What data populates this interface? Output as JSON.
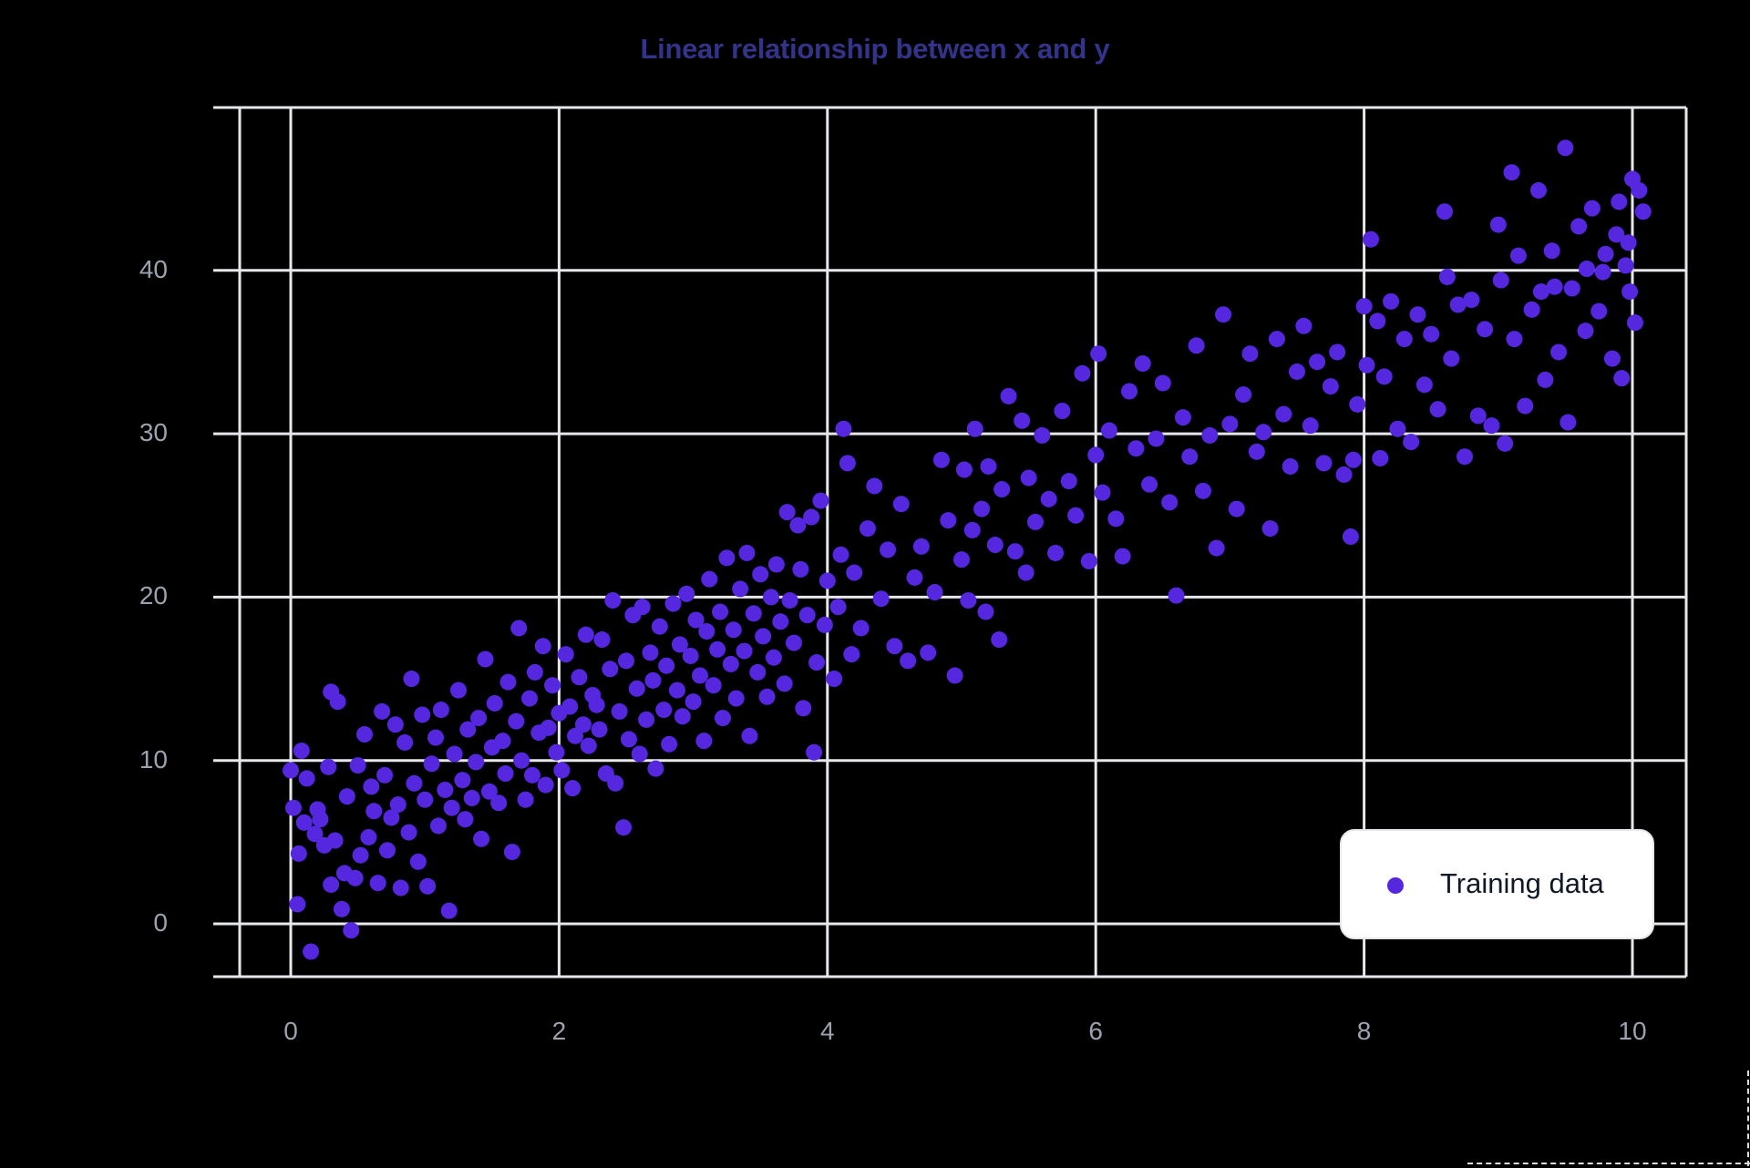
{
  "chart_data": {
    "type": "scatter",
    "title": "Linear relationship between x and y",
    "xlabel": "",
    "ylabel": "",
    "xlim": [
      -0.45,
      10.4
    ],
    "ylim": [
      -3.2,
      50
    ],
    "xticks": [
      0,
      2,
      4,
      6,
      8,
      10
    ],
    "yticks": [
      0,
      10,
      20,
      30,
      40
    ],
    "grid": true,
    "legend_position": "lower right",
    "colors": {
      "point": "#5528e0",
      "grid": "#e5e7eb",
      "title": "#33338a",
      "tick": "#9ca3af",
      "background": "#000000"
    },
    "series": [
      {
        "name": "Training data",
        "approx_count": 1000,
        "trend": {
          "slope": 3.4,
          "intercept": 6.8,
          "noise_sd": 3.0
        },
        "points": [
          [
            0.0,
            9.4
          ],
          [
            0.02,
            7.1
          ],
          [
            0.05,
            1.2
          ],
          [
            0.06,
            4.3
          ],
          [
            0.08,
            10.6
          ],
          [
            0.1,
            6.2
          ],
          [
            0.12,
            8.9
          ],
          [
            0.15,
            -1.7
          ],
          [
            0.18,
            5.5
          ],
          [
            0.2,
            7.0
          ],
          [
            0.22,
            6.4
          ],
          [
            0.25,
            4.8
          ],
          [
            0.28,
            9.6
          ],
          [
            0.3,
            2.4
          ],
          [
            0.3,
            14.2
          ],
          [
            0.33,
            5.1
          ],
          [
            0.35,
            13.6
          ],
          [
            0.38,
            0.9
          ],
          [
            0.4,
            3.1
          ],
          [
            0.42,
            7.8
          ],
          [
            0.45,
            -0.4
          ],
          [
            0.48,
            2.8
          ],
          [
            0.5,
            9.7
          ],
          [
            0.52,
            4.2
          ],
          [
            0.55,
            11.6
          ],
          [
            0.58,
            5.3
          ],
          [
            0.6,
            8.4
          ],
          [
            0.62,
            6.9
          ],
          [
            0.65,
            2.5
          ],
          [
            0.68,
            13.0
          ],
          [
            0.7,
            9.1
          ],
          [
            0.72,
            4.5
          ],
          [
            0.75,
            6.5
          ],
          [
            0.78,
            12.2
          ],
          [
            0.8,
            7.3
          ],
          [
            0.82,
            2.2
          ],
          [
            0.85,
            11.1
          ],
          [
            0.88,
            5.6
          ],
          [
            0.9,
            15.0
          ],
          [
            0.92,
            8.6
          ],
          [
            0.95,
            3.8
          ],
          [
            0.98,
            12.8
          ],
          [
            1.0,
            7.6
          ],
          [
            1.02,
            2.3
          ],
          [
            1.05,
            9.8
          ],
          [
            1.08,
            11.4
          ],
          [
            1.1,
            6.0
          ],
          [
            1.12,
            13.1
          ],
          [
            1.15,
            8.2
          ],
          [
            1.18,
            0.8
          ],
          [
            1.2,
            7.1
          ],
          [
            1.22,
            10.4
          ],
          [
            1.25,
            14.3
          ],
          [
            1.28,
            8.8
          ],
          [
            1.3,
            6.4
          ],
          [
            1.32,
            11.9
          ],
          [
            1.35,
            7.7
          ],
          [
            1.38,
            9.9
          ],
          [
            1.4,
            12.6
          ],
          [
            1.42,
            5.2
          ],
          [
            1.45,
            16.2
          ],
          [
            1.48,
            8.1
          ],
          [
            1.5,
            10.8
          ],
          [
            1.52,
            13.5
          ],
          [
            1.55,
            7.4
          ],
          [
            1.58,
            11.2
          ],
          [
            1.6,
            9.2
          ],
          [
            1.62,
            14.8
          ],
          [
            1.65,
            4.4
          ],
          [
            1.68,
            12.4
          ],
          [
            1.7,
            18.1
          ],
          [
            1.72,
            10.0
          ],
          [
            1.75,
            7.6
          ],
          [
            1.78,
            13.8
          ],
          [
            1.8,
            9.1
          ],
          [
            1.82,
            15.4
          ],
          [
            1.85,
            11.7
          ],
          [
            1.88,
            17.0
          ],
          [
            1.9,
            8.5
          ],
          [
            1.92,
            12.0
          ],
          [
            1.95,
            14.6
          ],
          [
            1.98,
            10.5
          ],
          [
            2.0,
            12.9
          ],
          [
            2.02,
            9.4
          ],
          [
            2.05,
            16.5
          ],
          [
            2.08,
            13.3
          ],
          [
            2.1,
            8.3
          ],
          [
            2.12,
            11.5
          ],
          [
            2.15,
            15.1
          ],
          [
            2.18,
            12.2
          ],
          [
            2.2,
            17.7
          ],
          [
            2.22,
            10.9
          ],
          [
            2.25,
            14.0
          ],
          [
            2.28,
            13.4
          ],
          [
            2.3,
            11.9
          ],
          [
            2.32,
            17.4
          ],
          [
            2.35,
            9.2
          ],
          [
            2.38,
            15.6
          ],
          [
            2.4,
            19.8
          ],
          [
            2.42,
            8.6
          ],
          [
            2.45,
            13.0
          ],
          [
            2.48,
            5.9
          ],
          [
            2.5,
            16.1
          ],
          [
            2.52,
            11.3
          ],
          [
            2.55,
            18.9
          ],
          [
            2.58,
            14.4
          ],
          [
            2.6,
            10.4
          ],
          [
            2.62,
            19.4
          ],
          [
            2.65,
            12.5
          ],
          [
            2.68,
            16.6
          ],
          [
            2.7,
            14.9
          ],
          [
            2.72,
            9.5
          ],
          [
            2.75,
            18.2
          ],
          [
            2.78,
            13.1
          ],
          [
            2.8,
            15.8
          ],
          [
            2.82,
            11.0
          ],
          [
            2.85,
            19.6
          ],
          [
            2.88,
            14.3
          ],
          [
            2.9,
            17.1
          ],
          [
            2.92,
            12.7
          ],
          [
            2.95,
            20.2
          ],
          [
            2.98,
            16.4
          ],
          [
            3.0,
            13.6
          ],
          [
            3.02,
            18.6
          ],
          [
            3.05,
            15.2
          ],
          [
            3.08,
            11.2
          ],
          [
            3.1,
            17.9
          ],
          [
            3.12,
            21.1
          ],
          [
            3.15,
            14.6
          ],
          [
            3.18,
            16.8
          ],
          [
            3.2,
            19.1
          ],
          [
            3.22,
            12.6
          ],
          [
            3.25,
            22.4
          ],
          [
            3.28,
            15.9
          ],
          [
            3.3,
            18.0
          ],
          [
            3.32,
            13.8
          ],
          [
            3.35,
            20.5
          ],
          [
            3.38,
            16.7
          ],
          [
            3.4,
            22.7
          ],
          [
            3.42,
            11.5
          ],
          [
            3.45,
            19.0
          ],
          [
            3.48,
            15.4
          ],
          [
            3.5,
            21.4
          ],
          [
            3.52,
            17.6
          ],
          [
            3.55,
            13.9
          ],
          [
            3.58,
            20.0
          ],
          [
            3.6,
            16.3
          ],
          [
            3.62,
            22.0
          ],
          [
            3.65,
            18.5
          ],
          [
            3.68,
            14.7
          ],
          [
            3.7,
            25.2
          ],
          [
            3.72,
            19.8
          ],
          [
            3.75,
            17.2
          ],
          [
            3.78,
            24.4
          ],
          [
            3.8,
            21.7
          ],
          [
            3.82,
            13.2
          ],
          [
            3.85,
            18.9
          ],
          [
            3.88,
            24.9
          ],
          [
            3.9,
            10.5
          ],
          [
            3.92,
            16.0
          ],
          [
            3.95,
            25.9
          ],
          [
            3.98,
            18.3
          ],
          [
            4.0,
            21.0
          ],
          [
            4.05,
            15.0
          ],
          [
            4.08,
            19.4
          ],
          [
            4.1,
            22.6
          ],
          [
            4.12,
            30.3
          ],
          [
            4.15,
            28.2
          ],
          [
            4.18,
            16.5
          ],
          [
            4.2,
            21.5
          ],
          [
            4.25,
            18.1
          ],
          [
            4.3,
            24.2
          ],
          [
            4.35,
            26.8
          ],
          [
            4.4,
            19.9
          ],
          [
            4.45,
            22.9
          ],
          [
            4.5,
            17.0
          ],
          [
            4.55,
            25.7
          ],
          [
            4.6,
            16.1
          ],
          [
            4.65,
            21.2
          ],
          [
            4.7,
            23.1
          ],
          [
            4.75,
            16.6
          ],
          [
            4.8,
            20.3
          ],
          [
            4.85,
            28.4
          ],
          [
            4.9,
            24.7
          ],
          [
            4.95,
            15.2
          ],
          [
            5.0,
            22.3
          ],
          [
            5.02,
            27.8
          ],
          [
            5.05,
            19.8
          ],
          [
            5.08,
            24.1
          ],
          [
            5.1,
            30.3
          ],
          [
            5.15,
            25.4
          ],
          [
            5.18,
            19.1
          ],
          [
            5.2,
            28.0
          ],
          [
            5.25,
            23.2
          ],
          [
            5.28,
            17.4
          ],
          [
            5.3,
            26.6
          ],
          [
            5.35,
            32.3
          ],
          [
            5.4,
            22.8
          ],
          [
            5.45,
            30.8
          ],
          [
            5.48,
            21.5
          ],
          [
            5.5,
            27.3
          ],
          [
            5.55,
            24.6
          ],
          [
            5.6,
            29.9
          ],
          [
            5.65,
            26.0
          ],
          [
            5.7,
            22.7
          ],
          [
            5.75,
            31.4
          ],
          [
            5.8,
            27.1
          ],
          [
            5.85,
            25.0
          ],
          [
            5.9,
            33.7
          ],
          [
            5.95,
            22.2
          ],
          [
            6.0,
            28.7
          ],
          [
            6.02,
            34.9
          ],
          [
            6.05,
            26.4
          ],
          [
            6.1,
            30.2
          ],
          [
            6.15,
            24.8
          ],
          [
            6.2,
            22.5
          ],
          [
            6.25,
            32.6
          ],
          [
            6.3,
            29.1
          ],
          [
            6.35,
            34.3
          ],
          [
            6.4,
            26.9
          ],
          [
            6.45,
            29.7
          ],
          [
            6.5,
            33.1
          ],
          [
            6.55,
            25.8
          ],
          [
            6.6,
            20.1
          ],
          [
            6.65,
            31.0
          ],
          [
            6.7,
            28.6
          ],
          [
            6.75,
            35.4
          ],
          [
            6.8,
            26.5
          ],
          [
            6.85,
            29.9
          ],
          [
            6.9,
            23.0
          ],
          [
            6.95,
            37.3
          ],
          [
            7.0,
            30.6
          ],
          [
            7.05,
            25.4
          ],
          [
            7.1,
            32.4
          ],
          [
            7.15,
            34.9
          ],
          [
            7.2,
            28.9
          ],
          [
            7.25,
            30.1
          ],
          [
            7.3,
            24.2
          ],
          [
            7.35,
            35.8
          ],
          [
            7.4,
            31.2
          ],
          [
            7.45,
            28.0
          ],
          [
            7.5,
            33.8
          ],
          [
            7.55,
            36.6
          ],
          [
            7.6,
            30.5
          ],
          [
            7.65,
            34.4
          ],
          [
            7.7,
            28.2
          ],
          [
            7.75,
            32.9
          ],
          [
            7.8,
            35.0
          ],
          [
            7.85,
            27.5
          ],
          [
            7.9,
            23.7
          ],
          [
            7.92,
            28.4
          ],
          [
            7.95,
            31.8
          ],
          [
            8.0,
            37.8
          ],
          [
            8.02,
            34.2
          ],
          [
            8.05,
            41.9
          ],
          [
            8.1,
            36.9
          ],
          [
            8.12,
            28.5
          ],
          [
            8.15,
            33.5
          ],
          [
            8.2,
            38.1
          ],
          [
            8.25,
            30.3
          ],
          [
            8.3,
            35.8
          ],
          [
            8.35,
            29.5
          ],
          [
            8.4,
            37.3
          ],
          [
            8.45,
            33.0
          ],
          [
            8.5,
            36.1
          ],
          [
            8.55,
            31.5
          ],
          [
            8.6,
            43.6
          ],
          [
            8.62,
            39.6
          ],
          [
            8.65,
            34.6
          ],
          [
            8.7,
            37.9
          ],
          [
            8.75,
            28.6
          ],
          [
            8.8,
            38.2
          ],
          [
            8.85,
            31.1
          ],
          [
            8.9,
            36.4
          ],
          [
            8.95,
            30.5
          ],
          [
            9.0,
            42.8
          ],
          [
            9.02,
            39.4
          ],
          [
            9.05,
            29.4
          ],
          [
            9.1,
            46.0
          ],
          [
            9.12,
            35.8
          ],
          [
            9.15,
            40.9
          ],
          [
            9.2,
            31.7
          ],
          [
            9.25,
            37.6
          ],
          [
            9.3,
            44.9
          ],
          [
            9.32,
            38.7
          ],
          [
            9.35,
            33.3
          ],
          [
            9.4,
            41.2
          ],
          [
            9.45,
            35.0
          ],
          [
            9.5,
            47.5
          ],
          [
            9.52,
            30.7
          ],
          [
            9.55,
            38.9
          ],
          [
            9.6,
            42.7
          ],
          [
            9.65,
            36.3
          ],
          [
            9.7,
            43.8
          ],
          [
            9.75,
            37.5
          ],
          [
            9.8,
            41.0
          ],
          [
            9.85,
            34.6
          ],
          [
            9.9,
            44.2
          ],
          [
            9.92,
            33.4
          ],
          [
            9.95,
            40.3
          ],
          [
            9.98,
            38.7
          ],
          [
            10.0,
            45.6
          ],
          [
            10.02,
            36.8
          ],
          [
            10.05,
            44.9
          ],
          [
            10.08,
            43.6
          ],
          [
            9.97,
            41.7
          ],
          [
            9.88,
            42.2
          ],
          [
            9.78,
            39.9
          ],
          [
            9.66,
            40.1
          ],
          [
            9.42,
            39.0
          ]
        ]
      }
    ]
  },
  "legend": {
    "items": [
      {
        "label": "Training data"
      }
    ]
  }
}
